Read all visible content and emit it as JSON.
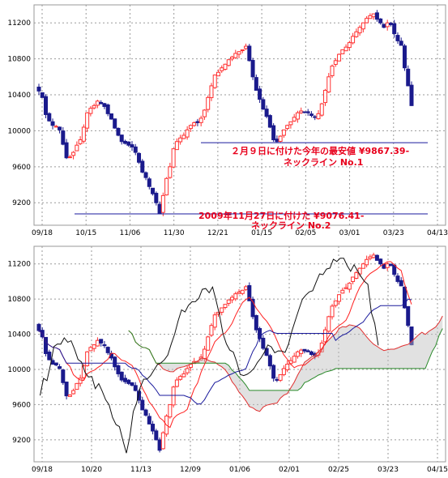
{
  "colors": {
    "up": "#ff3030",
    "down": "#1a1a8c",
    "grid": "#9a9a9a",
    "neckline": "#1a1a9c",
    "annotation": "#e8001c",
    "kijun": "#1a1a9c",
    "tenkan": "#ff2020",
    "chikou": "#101010",
    "span_a": "#e03030",
    "span_b": "#2a8a2a",
    "cloud": "#bdbdbd"
  },
  "chart_data": [
    {
      "type": "candlestick",
      "ylim": [
        8950,
        11400
      ],
      "yticks": [
        "11200",
        "10800",
        "10400",
        "10000",
        "9600",
        "9200"
      ],
      "xticks": [
        "09/18",
        "10/15",
        "11/06",
        "11/30",
        "12/21",
        "01/15",
        "02/05",
        "03/01",
        "03/23",
        "04/13"
      ],
      "closes": [
        10442,
        10370,
        10180,
        10110,
        10060,
        10050,
        10010,
        9850,
        9700,
        9710,
        9760,
        9840,
        9900,
        10040,
        10200,
        10250,
        10280,
        10330,
        10300,
        10270,
        10190,
        10130,
        10030,
        9950,
        9880,
        9860,
        9840,
        9820,
        9760,
        9650,
        9540,
        9480,
        9380,
        9300,
        9200,
        9081,
        9280,
        9470,
        9600,
        9800,
        9880,
        9920,
        9950,
        10010,
        10060,
        10090,
        10090,
        10140,
        10230,
        10370,
        10500,
        10620,
        10650,
        10700,
        10740,
        10790,
        10820,
        10860,
        10880,
        10900,
        10940,
        10780,
        10600,
        10450,
        10350,
        10240,
        10160,
        10040,
        9900,
        9880,
        9940,
        10010,
        10060,
        10100,
        10150,
        10200,
        10220,
        10210,
        10200,
        10170,
        10150,
        10190,
        10300,
        10450,
        10600,
        10720,
        10780,
        10850,
        10900,
        10930,
        10980,
        11050,
        11100,
        11150,
        11200,
        11250,
        11280,
        11300,
        11240,
        11200,
        11150,
        11200,
        11180,
        11080,
        11000,
        10950,
        10700,
        10500,
        10280
      ],
      "neckline_1": 9867.39,
      "neckline_2": 9076.41,
      "annotations": [
        [
          "２月９日に付けた今年の最安値 ¥9867.39-",
          "ネックライン No.1"
        ],
        [
          "2009年11月27日に付けた ¥9076.41-",
          "ネックライン No.2"
        ]
      ]
    },
    {
      "type": "candlestick",
      "indicator": "ichimoku",
      "ylim": [
        8950,
        11400
      ],
      "yticks": [
        "11200",
        "10800",
        "10400",
        "10000",
        "9600",
        "9200"
      ],
      "xticks": [
        "09/18",
        "10/20",
        "11/13",
        "12/09",
        "01/06",
        "02/01",
        "02/25",
        "03/23",
        "04/15"
      ],
      "chikou_anchor": [
        10400,
        10300,
        10200,
        9700,
        9500,
        9200,
        9100,
        9600,
        10200,
        10800,
        11000,
        10900,
        11050,
        10850,
        10400,
        10000,
        10050,
        10600,
        11000,
        10800,
        10100,
        10100,
        10300,
        10900,
        11300,
        11250,
        11100,
        11300,
        11200,
        11050
      ]
    }
  ]
}
